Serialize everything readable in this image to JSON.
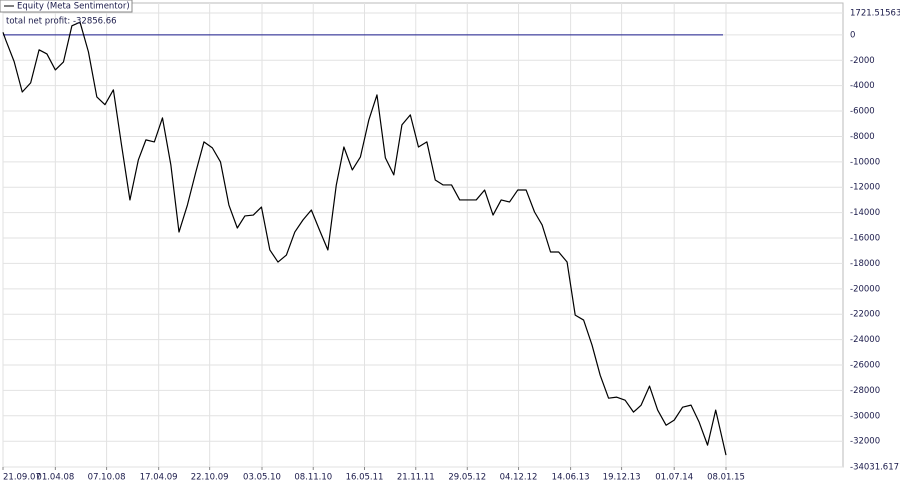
{
  "chart_data": {
    "type": "line",
    "legend_label_prefix_line": true,
    "annotation": "total net profit: -32856.66",
    "grid": true,
    "reference_line": {
      "value": 0,
      "color": "#1a1a8c"
    },
    "ylim": [
      -34031.61719,
      1721.51563
    ],
    "yticks": [
      1721.51563,
      0,
      -2000,
      -4000,
      -6000,
      -8000,
      -10000,
      -12000,
      -14000,
      -16000,
      -18000,
      -20000,
      -22000,
      -24000,
      -26000,
      -28000,
      -30000,
      -32000,
      -34031.61719
    ],
    "xlim": [
      "21.09.07",
      "08.01.15"
    ],
    "xticks": [
      "21.09.07",
      "01.04.08",
      "07.10.08",
      "17.04.09",
      "22.10.09",
      "03.05.10",
      "08.11.10",
      "16.05.11",
      "21.11.11",
      "29.05.12",
      "04.12.12",
      "14.06.13",
      "19.12.13",
      "01.07.14",
      "08.01.15"
    ],
    "series": [
      {
        "name": "Equity (Meta Sentimentor)",
        "color": "#000000",
        "x": [
          "21.09.07",
          "01.10.07",
          "01.11.07",
          "01.12.07",
          "01.01.08",
          "01.02.08",
          "01.03.08",
          "01.04.08",
          "01.05.08",
          "01.06.08",
          "01.07.08",
          "01.08.08",
          "01.09.08",
          "01.10.08",
          "01.11.08",
          "01.12.08",
          "01.01.09",
          "01.02.09",
          "01.03.09",
          "01.04.09",
          "01.05.09",
          "01.06.09",
          "01.07.09",
          "01.08.09",
          "01.09.09",
          "01.10.09",
          "01.11.09",
          "01.12.09",
          "01.01.10",
          "01.02.10",
          "01.03.10",
          "01.04.10",
          "01.05.10",
          "01.06.10",
          "01.07.10",
          "01.08.10",
          "01.09.10",
          "01.10.10",
          "01.11.10",
          "01.12.10",
          "01.01.11",
          "01.02.11",
          "01.03.11",
          "01.04.11",
          "01.05.11",
          "01.06.11",
          "01.07.11",
          "01.08.11",
          "01.09.11",
          "01.10.11",
          "01.11.11",
          "01.12.11",
          "01.01.12",
          "01.02.12",
          "01.03.12",
          "01.04.12",
          "01.05.12",
          "01.06.12",
          "01.07.12",
          "01.08.12",
          "01.09.12",
          "01.10.12",
          "01.11.12",
          "01.12.12",
          "01.01.13",
          "01.02.13",
          "01.03.13",
          "01.04.13",
          "01.05.13",
          "01.06.13",
          "01.07.13",
          "01.08.13",
          "01.09.13",
          "01.10.13",
          "01.11.13",
          "01.12.13",
          "01.01.14",
          "01.02.14",
          "01.03.14",
          "01.04.14",
          "01.05.14",
          "01.06.14",
          "01.07.14",
          "01.08.14",
          "01.09.14",
          "01.10.14",
          "01.11.14",
          "01.12.14",
          "08.01.15"
        ],
        "values": [
          200,
          -400,
          -2100,
          -4500,
          -3780,
          -1180,
          -1500,
          -2760,
          -2130,
          710,
          1000,
          -1340,
          -4890,
          -5500,
          -4330,
          -8670,
          -13000,
          -9850,
          -8270,
          -8430,
          -6540,
          -10250,
          -15530,
          -13400,
          -10800,
          -8430,
          -8900,
          -10010,
          -13400,
          -15210,
          -14260,
          -14190,
          -13560,
          -16940,
          -17890,
          -17340,
          -15530,
          -14580,
          -13790,
          -15370,
          -16940,
          -11820,
          -8830,
          -10640,
          -9610,
          -6700,
          -4730,
          -9690,
          -11030,
          -7090,
          -6300,
          -8830,
          -8430,
          -11430,
          -11820,
          -11820,
          -13000,
          -13000,
          -13000,
          -12220,
          -14190,
          -13000,
          -13160,
          -12220,
          -12220,
          -13950,
          -14970,
          -17100,
          -17100,
          -17890,
          -22070,
          -22460,
          -24430,
          -26800,
          -28610,
          -28530,
          -28770,
          -29710,
          -29160,
          -27660,
          -29550,
          -30740,
          -30340,
          -29320,
          -29160,
          -30500,
          -32310,
          -29550,
          -33100
        ]
      }
    ]
  }
}
